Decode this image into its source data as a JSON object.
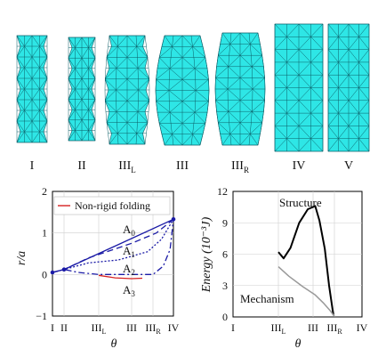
{
  "stage_labels": [
    "I",
    "II",
    "III",
    "III",
    "III",
    "IV",
    "V"
  ],
  "stage_subscripts": [
    "",
    "",
    "L",
    "",
    "R",
    "",
    ""
  ],
  "colors": {
    "mesh": "#2ee6e6",
    "mesh_edge": "#0b5d66",
    "red": "#d62020",
    "blue": "#1a1aa6",
    "black": "#000000",
    "grey": "#999999"
  },
  "chart_data": [
    {
      "type": "line",
      "ylabel": "r/a",
      "xlabel": "θ",
      "ylim": [
        -1,
        2
      ],
      "yticks": [
        "2",
        "1",
        "0",
        "−1"
      ],
      "xticks": [
        "I",
        "II",
        "III",
        "III",
        "III",
        "IV"
      ],
      "xtick_subscripts": [
        "",
        "",
        "L",
        "",
        "R",
        ""
      ],
      "legend": "Non-rigid folding",
      "curve_labels": [
        "A",
        "A",
        "A",
        "A"
      ],
      "curve_label_subscripts": [
        "0",
        "1",
        "2",
        "3"
      ],
      "series": [
        {
          "name": "A0",
          "style": "solid-blue",
          "points": [
            [
              0,
              0.05
            ],
            [
              0.3,
              0.12
            ],
            [
              5,
              1.33
            ]
          ]
        },
        {
          "name": "A1",
          "style": "dash-blue",
          "points": [
            [
              0,
              0.05
            ],
            [
              0.3,
              0.12
            ],
            [
              1.5,
              0.4
            ],
            [
              3,
              0.75
            ],
            [
              4,
              1.0
            ],
            [
              5,
              1.33
            ]
          ]
        },
        {
          "name": "A2",
          "style": "dot-blue",
          "points": [
            [
              0,
              0.05
            ],
            [
              0.3,
              0.12
            ],
            [
              1.5,
              0.28
            ],
            [
              2.6,
              0.35
            ],
            [
              3.6,
              0.55
            ],
            [
              4.3,
              0.85
            ],
            [
              5,
              1.33
            ]
          ]
        },
        {
          "name": "A3",
          "style": "dashdot-blue",
          "points": [
            [
              0,
              0.05
            ],
            [
              0.3,
              0.12
            ],
            [
              1.0,
              0.05
            ],
            [
              2.0,
              0.0
            ],
            [
              3.0,
              0.0
            ],
            [
              3.8,
              0.0
            ],
            [
              4.4,
              0.2
            ],
            [
              4.8,
              0.6
            ],
            [
              5,
              1.33
            ]
          ]
        },
        {
          "name": "Non-rigid folding",
          "style": "solid-red",
          "points": [
            [
              2.0,
              -0.02
            ],
            [
              2.5,
              -0.08
            ],
            [
              3.0,
              -0.1
            ],
            [
              3.4,
              -0.09
            ]
          ]
        }
      ]
    },
    {
      "type": "line",
      "ylabel": "Energy (10⁻³J)",
      "xlabel": "θ",
      "ylim": [
        0,
        12
      ],
      "yticks": [
        "12",
        "9",
        "6",
        "3",
        "0"
      ],
      "xticks": [
        "I",
        "III",
        "III",
        "III",
        "IV"
      ],
      "xtick_subscripts": [
        "",
        "L",
        "",
        "R",
        ""
      ],
      "series": [
        {
          "name": "Structure",
          "color": "#000000",
          "x": [
            2.0,
            2.15,
            2.35,
            2.6,
            2.85,
            3.1,
            3.3,
            3.55,
            3.75,
            3.95
          ],
          "y": [
            6.2,
            5.6,
            6.6,
            9.0,
            10.3,
            10.6,
            9.2,
            6.5,
            3.0,
            0.2
          ]
        },
        {
          "name": "Mechanism",
          "color": "#999999",
          "x": [
            2.0,
            2.3,
            2.7,
            3.1,
            3.5,
            3.8,
            4.0
          ],
          "y": [
            4.8,
            3.9,
            2.9,
            2.1,
            1.3,
            0.6,
            0.05
          ]
        }
      ]
    }
  ]
}
